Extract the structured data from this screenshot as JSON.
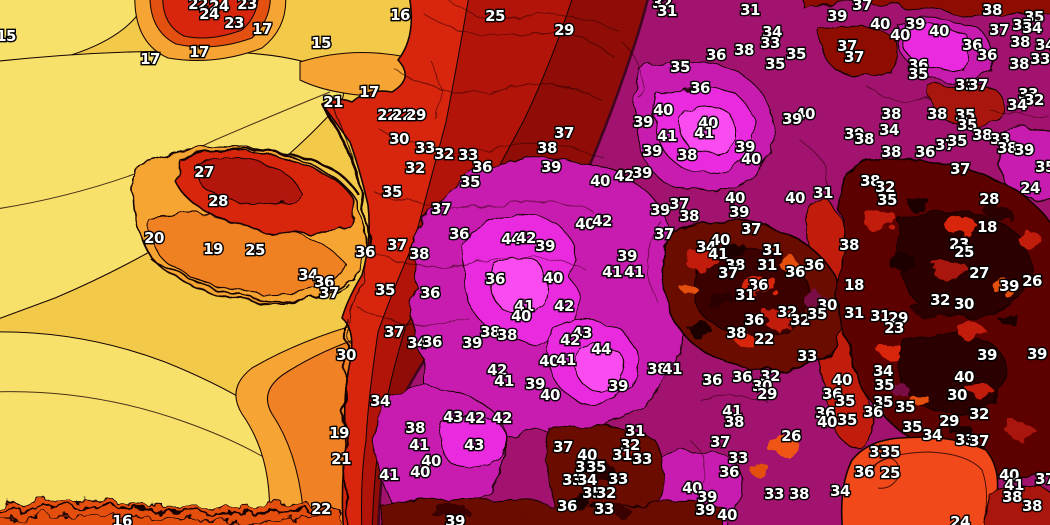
{
  "palette": {
    "pale_yellow": "#F7E16B",
    "gold": "#F3C94A",
    "light_orange": "#F6A433",
    "orange": "#F08124",
    "red_orange": "#E4500F",
    "mediterranean_red_orange": "#F2491A",
    "red": "#D8260E",
    "dark_red": "#B2140A",
    "maroon": "#8F0D06",
    "dark_maroon": "#6B0705",
    "near_black": "#1F0302",
    "transition_crimson": "#6E0A2A",
    "purple": "#A21370",
    "magenta": "#C81DB0",
    "bright_magenta": "#E92ADF",
    "hot_pink": "#F94BF0",
    "label_fill": "#FFFFFF",
    "label_outline": "#000000",
    "contour": "#150502"
  },
  "chart_data": {
    "type": "heatmap",
    "value_range": [
      15,
      44
    ],
    "legend_position": "none",
    "grid": "contour-lines",
    "stations": [
      [
        15,
        6,
        36
      ],
      [
        22,
        198,
        4
      ],
      [
        24,
        219,
        6
      ],
      [
        23,
        247,
        4
      ],
      [
        24,
        209,
        14
      ],
      [
        23,
        234,
        23
      ],
      [
        17,
        262,
        29
      ],
      [
        17,
        150,
        59
      ],
      [
        17,
        199,
        52
      ],
      [
        15,
        321,
        43
      ],
      [
        21,
        333,
        102
      ],
      [
        17,
        369,
        92
      ],
      [
        27,
        204,
        172
      ],
      [
        28,
        218,
        201
      ],
      [
        20,
        154,
        238
      ],
      [
        19,
        213,
        249
      ],
      [
        25,
        255,
        250
      ],
      [
        30,
        346,
        355
      ],
      [
        19,
        339,
        433
      ],
      [
        21,
        341,
        459
      ],
      [
        22,
        321,
        509
      ],
      [
        16,
        122,
        521
      ],
      [
        16,
        400,
        15
      ],
      [
        25,
        495,
        16
      ],
      [
        29,
        564,
        30
      ],
      [
        22,
        387,
        115
      ],
      [
        22,
        402,
        115
      ],
      [
        29,
        416,
        115
      ],
      [
        30,
        399,
        139
      ],
      [
        33,
        425,
        148
      ],
      [
        32,
        444,
        154
      ],
      [
        33,
        468,
        155
      ],
      [
        32,
        415,
        168
      ],
      [
        36,
        482,
        167
      ],
      [
        35,
        392,
        192
      ],
      [
        35,
        470,
        182
      ],
      [
        37,
        441,
        209
      ],
      [
        36,
        459,
        234
      ],
      [
        37,
        397,
        245
      ],
      [
        38,
        419,
        254
      ],
      [
        36,
        365,
        252
      ],
      [
        34,
        308,
        275
      ],
      [
        36,
        324,
        282
      ],
      [
        37,
        329,
        293
      ],
      [
        35,
        385,
        290
      ],
      [
        36,
        430,
        293
      ],
      [
        37,
        394,
        332
      ],
      [
        34,
        417,
        343
      ],
      [
        36,
        432,
        342
      ],
      [
        39,
        472,
        343
      ],
      [
        38,
        490,
        332
      ],
      [
        38,
        507,
        335
      ],
      [
        37,
        564,
        133
      ],
      [
        38,
        547,
        148
      ],
      [
        39,
        551,
        167
      ],
      [
        40,
        600,
        181
      ],
      [
        42,
        624,
        176
      ],
      [
        40,
        585,
        224
      ],
      [
        42,
        602,
        221
      ],
      [
        39,
        545,
        246
      ],
      [
        44,
        511,
        239
      ],
      [
        42,
        526,
        238
      ],
      [
        36,
        495,
        279
      ],
      [
        40,
        553,
        278
      ],
      [
        41,
        524,
        306
      ],
      [
        40,
        521,
        316
      ],
      [
        42,
        564,
        306
      ],
      [
        39,
        627,
        256
      ],
      [
        41,
        612,
        272
      ],
      [
        41,
        634,
        272
      ],
      [
        43,
        582,
        333
      ],
      [
        42,
        570,
        340
      ],
      [
        44,
        601,
        349
      ],
      [
        40,
        549,
        361
      ],
      [
        41,
        566,
        360
      ],
      [
        42,
        497,
        370
      ],
      [
        41,
        504,
        381
      ],
      [
        39,
        535,
        384
      ],
      [
        40,
        550,
        395
      ],
      [
        39,
        618,
        386
      ],
      [
        38,
        657,
        369
      ],
      [
        41,
        672,
        369
      ],
      [
        34,
        380,
        401
      ],
      [
        43,
        453,
        417
      ],
      [
        42,
        475,
        418
      ],
      [
        42,
        502,
        418
      ],
      [
        38,
        415,
        428
      ],
      [
        41,
        419,
        445
      ],
      [
        43,
        474,
        445
      ],
      [
        40,
        431,
        461
      ],
      [
        40,
        420,
        472
      ],
      [
        41,
        389,
        475
      ],
      [
        39,
        455,
        521
      ],
      [
        37,
        563,
        447
      ],
      [
        31,
        635,
        431
      ],
      [
        32,
        630,
        445
      ],
      [
        31,
        622,
        455
      ],
      [
        33,
        642,
        459
      ],
      [
        40,
        587,
        455
      ],
      [
        33,
        585,
        467
      ],
      [
        35,
        596,
        467
      ],
      [
        33,
        572,
        480
      ],
      [
        34,
        587,
        480
      ],
      [
        33,
        618,
        479
      ],
      [
        35,
        592,
        493
      ],
      [
        32,
        606,
        493
      ],
      [
        36,
        567,
        506
      ],
      [
        33,
        604,
        509
      ],
      [
        40,
        692,
        488
      ],
      [
        39,
        707,
        497
      ],
      [
        40,
        727,
        515
      ],
      [
        35,
        680,
        67
      ],
      [
        36,
        700,
        88
      ],
      [
        40,
        663,
        110
      ],
      [
        39,
        643,
        122
      ],
      [
        41,
        667,
        136
      ],
      [
        40,
        708,
        123
      ],
      [
        41,
        704,
        133
      ],
      [
        39,
        652,
        151
      ],
      [
        38,
        687,
        155
      ],
      [
        39,
        745,
        147
      ],
      [
        40,
        751,
        159
      ],
      [
        39,
        642,
        173
      ],
      [
        39,
        660,
        210
      ],
      [
        37,
        679,
        204
      ],
      [
        38,
        689,
        216
      ],
      [
        37,
        664,
        234
      ],
      [
        32,
        662,
        3
      ],
      [
        31,
        667,
        11
      ],
      [
        31,
        750,
        10
      ],
      [
        34,
        772,
        32
      ],
      [
        33,
        770,
        43
      ],
      [
        38,
        744,
        50
      ],
      [
        36,
        716,
        55
      ],
      [
        35,
        796,
        54
      ],
      [
        35,
        775,
        64
      ],
      [
        37,
        847,
        46
      ],
      [
        37,
        854,
        57
      ],
      [
        37,
        862,
        5
      ],
      [
        39,
        837,
        16
      ],
      [
        40,
        880,
        24
      ],
      [
        39,
        915,
        24
      ],
      [
        40,
        900,
        35
      ],
      [
        40,
        939,
        31
      ],
      [
        38,
        992,
        10
      ],
      [
        37,
        999,
        30
      ],
      [
        35,
        1034,
        17
      ],
      [
        35,
        1022,
        25
      ],
      [
        34,
        1032,
        28
      ],
      [
        36,
        972,
        45
      ],
      [
        38,
        1020,
        42
      ],
      [
        36,
        987,
        55
      ],
      [
        34,
        1045,
        45
      ],
      [
        36,
        918,
        65
      ],
      [
        35,
        918,
        74
      ],
      [
        38,
        1019,
        64
      ],
      [
        33,
        1040,
        59
      ],
      [
        33,
        965,
        85
      ],
      [
        37,
        978,
        85
      ],
      [
        33,
        1028,
        94
      ],
      [
        32,
        1034,
        100
      ],
      [
        34,
        1017,
        105
      ],
      [
        40,
        805,
        114
      ],
      [
        39,
        792,
        119
      ],
      [
        38,
        891,
        114
      ],
      [
        34,
        889,
        130
      ],
      [
        39,
        854,
        134
      ],
      [
        38,
        864,
        139
      ],
      [
        38,
        891,
        152
      ],
      [
        38,
        937,
        114
      ],
      [
        35,
        965,
        115
      ],
      [
        35,
        967,
        125
      ],
      [
        38,
        982,
        135
      ],
      [
        33,
        1000,
        139
      ],
      [
        37,
        945,
        145
      ],
      [
        35,
        957,
        141
      ],
      [
        36,
        925,
        152
      ],
      [
        38,
        1007,
        148
      ],
      [
        39,
        1024,
        150
      ],
      [
        37,
        960,
        169
      ],
      [
        38,
        870,
        181
      ],
      [
        32,
        885,
        187
      ],
      [
        35,
        887,
        200
      ],
      [
        28,
        989,
        199
      ],
      [
        35,
        1045,
        167
      ],
      [
        24,
        1030,
        188
      ],
      [
        40,
        735,
        198
      ],
      [
        39,
        739,
        212
      ],
      [
        40,
        795,
        198
      ],
      [
        31,
        823,
        193
      ],
      [
        37,
        751,
        229
      ],
      [
        40,
        720,
        240
      ],
      [
        34,
        706,
        247
      ],
      [
        41,
        718,
        254
      ],
      [
        38,
        735,
        265
      ],
      [
        37,
        728,
        273
      ],
      [
        31,
        772,
        250
      ],
      [
        31,
        767,
        265
      ],
      [
        36,
        795,
        272
      ],
      [
        36,
        814,
        265
      ],
      [
        36,
        758,
        285
      ],
      [
        31,
        745,
        295
      ],
      [
        38,
        849,
        245
      ],
      [
        18,
        854,
        285
      ],
      [
        30,
        827,
        305
      ],
      [
        31,
        854,
        313
      ],
      [
        32,
        787,
        312
      ],
      [
        32,
        800,
        320
      ],
      [
        35,
        817,
        314
      ],
      [
        36,
        754,
        320
      ],
      [
        38,
        736,
        333
      ],
      [
        22,
        764,
        339
      ],
      [
        18,
        987,
        227
      ],
      [
        23,
        959,
        244
      ],
      [
        25,
        964,
        252
      ],
      [
        27,
        979,
        273
      ],
      [
        39,
        1009,
        286
      ],
      [
        26,
        1032,
        281
      ],
      [
        30,
        964,
        304
      ],
      [
        32,
        940,
        300
      ],
      [
        31,
        880,
        316
      ],
      [
        29,
        898,
        318
      ],
      [
        23,
        894,
        328
      ],
      [
        36,
        712,
        380
      ],
      [
        36,
        742,
        377
      ],
      [
        32,
        770,
        376
      ],
      [
        30,
        762,
        386
      ],
      [
        29,
        767,
        394
      ],
      [
        33,
        807,
        356
      ],
      [
        40,
        842,
        380
      ],
      [
        36,
        832,
        394
      ],
      [
        35,
        845,
        401
      ],
      [
        34,
        883,
        371
      ],
      [
        35,
        884,
        385
      ],
      [
        35,
        883,
        402
      ],
      [
        36,
        873,
        412
      ],
      [
        35,
        847,
        420
      ],
      [
        36,
        825,
        413
      ],
      [
        40,
        827,
        422
      ],
      [
        35,
        905,
        407
      ],
      [
        35,
        912,
        427
      ],
      [
        34,
        932,
        435
      ],
      [
        29,
        949,
        421
      ],
      [
        33,
        965,
        440
      ],
      [
        37,
        979,
        441
      ],
      [
        39,
        987,
        355
      ],
      [
        40,
        964,
        377
      ],
      [
        30,
        957,
        395
      ],
      [
        32,
        979,
        414
      ],
      [
        41,
        732,
        411
      ],
      [
        38,
        734,
        422
      ],
      [
        37,
        720,
        442
      ],
      [
        26,
        791,
        436
      ],
      [
        33,
        738,
        458
      ],
      [
        36,
        729,
        472
      ],
      [
        25,
        890,
        473
      ],
      [
        33,
        774,
        494
      ],
      [
        38,
        799,
        494
      ],
      [
        34,
        840,
        491
      ],
      [
        36,
        864,
        472
      ],
      [
        37,
        879,
        452
      ],
      [
        35,
        890,
        452
      ],
      [
        39,
        705,
        510
      ],
      [
        40,
        1009,
        475
      ],
      [
        41,
        1014,
        485
      ],
      [
        38,
        1012,
        497
      ],
      [
        38,
        1032,
        506
      ],
      [
        37,
        1045,
        479
      ],
      [
        39,
        1037,
        354
      ],
      [
        24,
        960,
        522
      ]
    ]
  }
}
